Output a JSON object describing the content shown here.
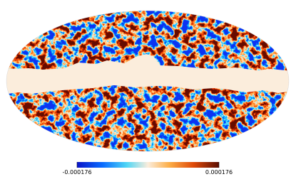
{
  "colorbar": {
    "min": -0.000176,
    "max": 0.000176
  }
}
